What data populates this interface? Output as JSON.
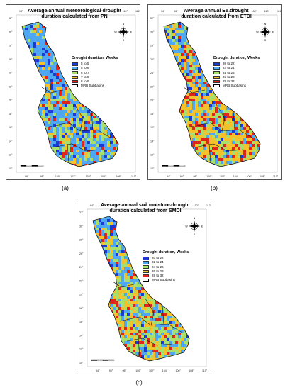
{
  "panels": [
    {
      "id": "a",
      "caption": "(a)",
      "title_line1": "Average annual meteorological drought",
      "title_line2": "duration calculated from PN",
      "legend_title": "Drought duration, Weeks",
      "legend_items": [
        {
          "label": "5 to 5",
          "color": "#1e3ad6"
        },
        {
          "label": "5 to 6",
          "color": "#4ea7f0"
        },
        {
          "label": "6 to 7",
          "color": "#a8e06e"
        },
        {
          "label": "7 to 8",
          "color": "#f5c12a"
        },
        {
          "label": "8 to 9",
          "color": "#e0261a"
        }
      ],
      "legend_outline_label": "MRB Subbasins",
      "top_ticks": [
        "94°",
        "96°",
        "98°",
        "100°",
        "102°",
        "104°",
        "106°",
        "108°",
        "110°",
        "112°"
      ],
      "bottom_ticks": [
        "96°",
        "98°",
        "100°",
        "102°",
        "104°",
        "106°",
        "108°",
        "110°"
      ],
      "left_ticks": [
        "32°",
        "30°",
        "28°",
        "26°",
        "24°",
        "22°",
        "20°",
        "18°",
        "16°",
        "14°",
        "12°",
        "10°"
      ]
    },
    {
      "id": "b",
      "caption": "(b)",
      "title_line1": "Average annual ET drought",
      "title_line2": "duration calculated from ETDI",
      "legend_title": "Drought duration, Weeks",
      "legend_items": [
        {
          "label": "20 to 22",
          "color": "#1e3ad6"
        },
        {
          "label": "22 to 24",
          "color": "#4ea7f0"
        },
        {
          "label": "24 to 26",
          "color": "#a8e06e"
        },
        {
          "label": "26 to 28",
          "color": "#f5c12a"
        },
        {
          "label": "28 to 32",
          "color": "#e0261a"
        }
      ],
      "legend_outline_label": "MRB Subbasins",
      "top_ticks": [
        "94°",
        "96°",
        "98°",
        "100°",
        "102°",
        "104°",
        "106°",
        "108°",
        "110°",
        "112°"
      ],
      "bottom_ticks": [
        "94°",
        "96°",
        "98°",
        "100°",
        "102°",
        "104°",
        "106°",
        "108°",
        "110°"
      ],
      "left_ticks": [
        "32°",
        "30°",
        "28°",
        "26°",
        "24°",
        "22°",
        "20°",
        "18°",
        "16°",
        "14°",
        "12°",
        "10°"
      ]
    },
    {
      "id": "c",
      "caption": "(c)",
      "title_line1": "Average annual soil moisture drought",
      "title_line2": "duration calculated from SMDI",
      "legend_title": "Drought duration, Weeks",
      "legend_items": [
        {
          "label": "20 to 22",
          "color": "#1e3ad6"
        },
        {
          "label": "22 to 24",
          "color": "#4ea7f0"
        },
        {
          "label": "24 to 26",
          "color": "#a8e06e"
        },
        {
          "label": "26 to 28",
          "color": "#f5c12a"
        },
        {
          "label": "28 to 32",
          "color": "#e0261a"
        }
      ],
      "legend_outline_label": "MRB Subbasins",
      "top_ticks": [
        "94°",
        "96°",
        "98°",
        "100°",
        "102°",
        "104°",
        "106°",
        "108°",
        "110°",
        "112°"
      ],
      "bottom_ticks": [
        "94°",
        "96°",
        "98°",
        "100°",
        "102°",
        "104°",
        "106°",
        "108°",
        "110°"
      ],
      "left_ticks": [
        "32°",
        "30°",
        "28°",
        "26°",
        "24°",
        "22°",
        "20°",
        "18°",
        "16°",
        "14°",
        "12°",
        "10°"
      ]
    }
  ],
  "compass_letters": [
    "N",
    "E",
    "S",
    "W"
  ]
}
